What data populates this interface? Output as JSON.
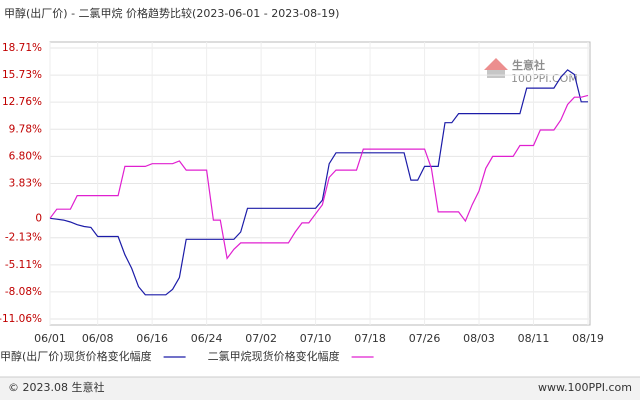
{
  "chart_data": {
    "type": "line",
    "title": "甲醇(出厂价) - 二氯甲烷 价格趋势比较(2023-06-01 - 2023-08-19)",
    "x": [
      "06/01",
      "06/02",
      "06/03",
      "06/04",
      "06/05",
      "06/06",
      "06/07",
      "06/08",
      "06/09",
      "06/10",
      "06/11",
      "06/12",
      "06/13",
      "06/14",
      "06/15",
      "06/16",
      "06/17",
      "06/18",
      "06/19",
      "06/20",
      "06/21",
      "06/22",
      "06/23",
      "06/24",
      "06/25",
      "06/26",
      "06/27",
      "06/28",
      "06/29",
      "06/30",
      "07/01",
      "07/02",
      "07/03",
      "07/04",
      "07/05",
      "07/06",
      "07/07",
      "07/08",
      "07/09",
      "07/10",
      "07/11",
      "07/12",
      "07/13",
      "07/14",
      "07/15",
      "07/16",
      "07/17",
      "07/18",
      "07/19",
      "07/20",
      "07/21",
      "07/22",
      "07/23",
      "07/24",
      "07/25",
      "07/26",
      "07/27",
      "07/28",
      "07/29",
      "07/30",
      "07/31",
      "08/01",
      "08/02",
      "08/03",
      "08/04",
      "08/05",
      "08/06",
      "08/07",
      "08/08",
      "08/09",
      "08/10",
      "08/11",
      "08/12",
      "08/13",
      "08/14",
      "08/15",
      "08/16",
      "08/17",
      "08/18",
      "08/19"
    ],
    "xticks": [
      "06/01",
      "06/08",
      "06/16",
      "06/24",
      "07/02",
      "07/10",
      "07/18",
      "07/26",
      "08/03",
      "08/11",
      "08/19"
    ],
    "series": [
      {
        "name": "甲醇(出厂价)现货价格变化幅度",
        "color": "#1c1ca8",
        "values": [
          0,
          -0.1,
          -0.2,
          -0.4,
          -0.7,
          -0.9,
          -1.0,
          -2.0,
          -2.0,
          -2.0,
          -2.0,
          -4.0,
          -5.5,
          -7.5,
          -8.4,
          -8.4,
          -8.4,
          -8.4,
          -7.8,
          -6.5,
          -2.3,
          -2.3,
          -2.3,
          -2.3,
          -2.3,
          -2.3,
          -2.3,
          -2.3,
          -1.5,
          1.1,
          1.1,
          1.1,
          1.1,
          1.1,
          1.1,
          1.1,
          1.1,
          1.1,
          1.1,
          1.1,
          2.0,
          6.0,
          7.2,
          7.2,
          7.2,
          7.2,
          7.2,
          7.2,
          7.2,
          7.2,
          7.2,
          7.2,
          7.2,
          4.2,
          4.2,
          5.7,
          5.7,
          5.7,
          10.5,
          10.5,
          11.5,
          11.5,
          11.5,
          11.5,
          11.5,
          11.5,
          11.5,
          11.5,
          11.5,
          11.5,
          14.3,
          14.3,
          14.3,
          14.3,
          14.3,
          15.5,
          16.3,
          15.8,
          12.8,
          12.8
        ]
      },
      {
        "name": "二氯甲烷现货价格变化幅度",
        "color": "#e020d0",
        "values": [
          0,
          1.0,
          1.0,
          1.0,
          2.5,
          2.5,
          2.5,
          2.5,
          2.5,
          2.5,
          2.5,
          5.7,
          5.7,
          5.7,
          5.7,
          6.0,
          6.0,
          6.0,
          6.0,
          6.3,
          5.3,
          5.3,
          5.3,
          5.3,
          -0.2,
          -0.2,
          -4.4,
          -3.4,
          -2.7,
          -2.7,
          -2.7,
          -2.7,
          -2.7,
          -2.7,
          -2.7,
          -2.7,
          -1.5,
          -0.5,
          -0.5,
          0.5,
          1.5,
          4.5,
          5.3,
          5.3,
          5.3,
          5.3,
          7.6,
          7.6,
          7.6,
          7.6,
          7.6,
          7.6,
          7.6,
          7.6,
          7.6,
          7.6,
          5.5,
          0.7,
          0.7,
          0.7,
          0.7,
          -0.3,
          1.5,
          3.0,
          5.5,
          6.8,
          6.8,
          6.8,
          6.8,
          8.0,
          8.0,
          8.0,
          9.7,
          9.7,
          9.7,
          10.8,
          12.5,
          13.3,
          13.3,
          13.5
        ]
      }
    ],
    "ylim": [
      -11.06,
      18.71
    ],
    "yticks": [
      {
        "value": 18.71,
        "label": "18.71%"
      },
      {
        "value": 15.73,
        "label": "15.73%"
      },
      {
        "value": 12.76,
        "label": "12.76%"
      },
      {
        "value": 9.78,
        "label": "9.78%"
      },
      {
        "value": 6.8,
        "label": "6.80%"
      },
      {
        "value": 3.83,
        "label": "3.83%"
      },
      0,
      {
        "value": -2.13,
        "label": "-2.13%"
      },
      {
        "value": -5.11,
        "label": "-5.11%"
      },
      {
        "value": -8.08,
        "label": "-8.08%"
      },
      {
        "value": -11.06,
        "label": "-11.06%"
      }
    ],
    "grid": true,
    "watermark": {
      "name": "生意社",
      "site": "100PPI.COM"
    },
    "footer": {
      "left": "© 2023.08 生意社",
      "right": "www.100PPI.com"
    }
  }
}
